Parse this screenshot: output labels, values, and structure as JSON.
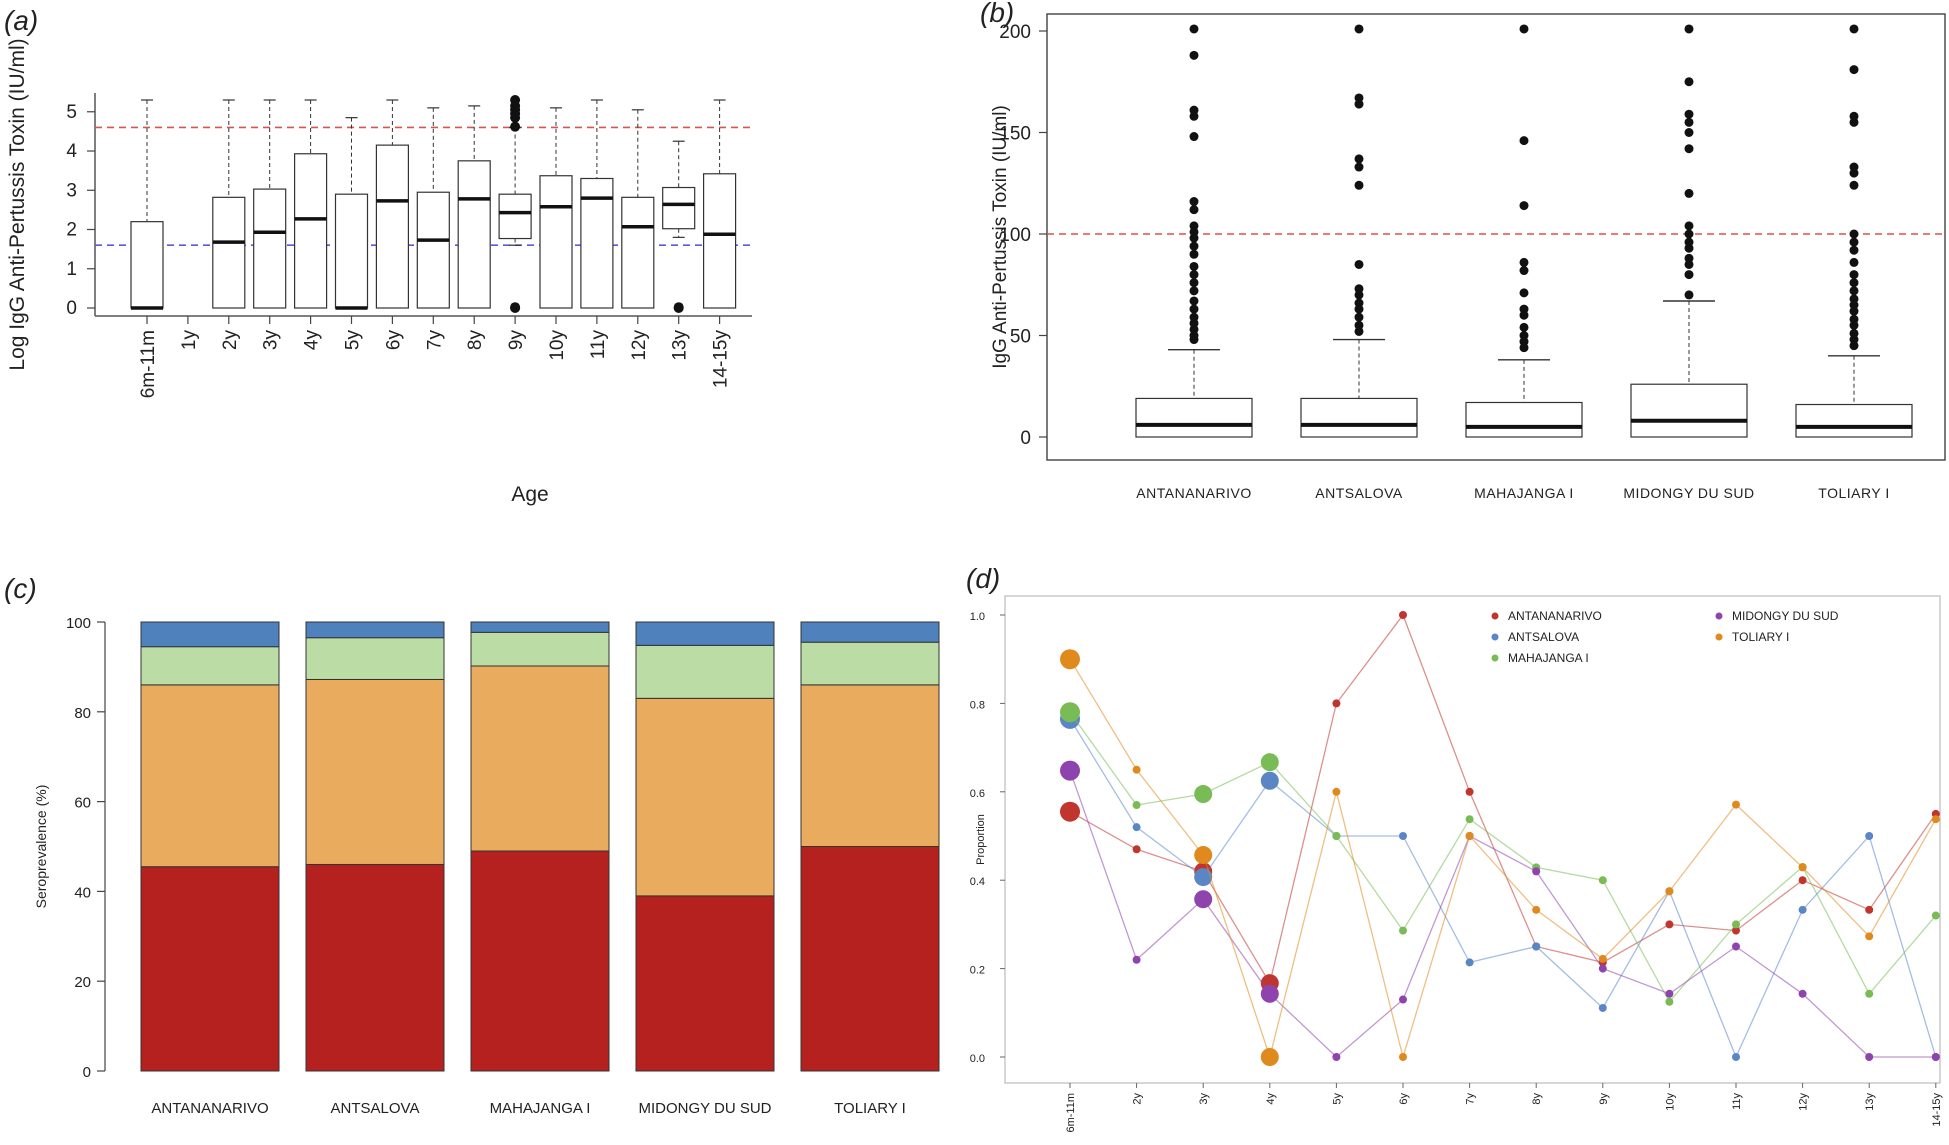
{
  "colors": {
    "ref_high": "#d9534f",
    "ref_low": "#5b5bd6",
    "stack": [
      "#b5211e",
      "#e9ab5e",
      "#bbdca4",
      "#4f81bd"
    ],
    "series": {
      "ANTANANARIVO": "#c0352d",
      "ANTSALOVA": "#5b86c6",
      "MAHAJANGA I": "#79bb55",
      "MIDONGY DU SUD": "#8e44ad",
      "TOLIARY I": "#e08a1e"
    }
  },
  "chart_data": [
    {
      "panel": "(a)",
      "type": "box",
      "xlabel": "Age",
      "ylabel": "Log IgG Anti-Pertussis Toxin (IU/ml)",
      "ylim": [
        0,
        5.3
      ],
      "yticks": [
        "0",
        "1",
        "2",
        "3",
        "4",
        "5"
      ],
      "reference_lines": [
        4.6,
        1.6
      ],
      "categories": [
        "6m-11m",
        "1y",
        "2y",
        "3y",
        "4y",
        "5y",
        "6y",
        "7y",
        "8y",
        "9y",
        "10y",
        "11y",
        "12y",
        "13y",
        "14-15y"
      ],
      "boxes": [
        {
          "cat": "6m-11m",
          "min": 0,
          "q1": 0,
          "median": 0,
          "q3": 2.2,
          "max": 5.3,
          "outliers": []
        },
        {
          "cat": "2y",
          "min": 0,
          "q1": 0,
          "median": 1.68,
          "q3": 2.82,
          "max": 5.3,
          "outliers": []
        },
        {
          "cat": "3y",
          "min": 0,
          "q1": 0,
          "median": 1.93,
          "q3": 3.03,
          "max": 5.3,
          "outliers": []
        },
        {
          "cat": "4y",
          "min": 0,
          "q1": 0,
          "median": 2.27,
          "q3": 3.93,
          "max": 5.3,
          "outliers": []
        },
        {
          "cat": "5y",
          "min": 0,
          "q1": 0,
          "median": 0,
          "q3": 2.9,
          "max": 4.85,
          "outliers": []
        },
        {
          "cat": "6y",
          "min": 0,
          "q1": 0,
          "median": 2.73,
          "q3": 4.15,
          "max": 5.3,
          "outliers": []
        },
        {
          "cat": "7y",
          "min": 0,
          "q1": 0,
          "median": 1.73,
          "q3": 2.95,
          "max": 5.1,
          "outliers": []
        },
        {
          "cat": "8y",
          "min": 0,
          "q1": 0,
          "median": 2.78,
          "q3": 3.75,
          "max": 5.15,
          "outliers": []
        },
        {
          "cat": "9y",
          "min": 1.6,
          "q1": 1.77,
          "median": 2.43,
          "q3": 2.9,
          "max": 4.6,
          "outliers": [
            0,
            0.02,
            4.62,
            4.85,
            4.95,
            5.05,
            5.15,
            5.3
          ]
        },
        {
          "cat": "10y",
          "min": 0,
          "q1": 0,
          "median": 2.58,
          "q3": 3.37,
          "max": 5.1,
          "outliers": []
        },
        {
          "cat": "11y",
          "min": 0,
          "q1": 0,
          "median": 2.8,
          "q3": 3.3,
          "max": 5.3,
          "outliers": []
        },
        {
          "cat": "12y",
          "min": 0,
          "q1": 0,
          "median": 2.07,
          "q3": 2.82,
          "max": 5.05,
          "outliers": []
        },
        {
          "cat": "13y",
          "min": 1.8,
          "q1": 2.02,
          "median": 2.64,
          "q3": 3.07,
          "max": 4.25,
          "outliers": [
            0,
            0.02
          ]
        },
        {
          "cat": "14-15y",
          "min": 0,
          "q1": 0,
          "median": 1.88,
          "q3": 3.42,
          "max": 5.3,
          "outliers": []
        }
      ]
    },
    {
      "panel": "(b)",
      "type": "box",
      "xlabel": "",
      "ylabel": "IgG Anti-Pertussis Toxin (IU/ml)",
      "ylim": [
        0,
        200
      ],
      "yticks": [
        "0",
        "50",
        "100",
        "150",
        "200"
      ],
      "reference_lines": [
        100
      ],
      "categories": [
        "ANTANANARIVO",
        "ANTSALOVA",
        "MAHAJANGA I",
        "MIDONGY DU SUD",
        "TOLIARY I"
      ],
      "boxes": [
        {
          "cat": "ANTANANARIVO",
          "min": 0,
          "q1": 0,
          "median": 6,
          "q3": 19,
          "max": 43,
          "outliers": [
            48,
            50,
            53,
            56,
            59,
            63,
            67,
            72,
            76,
            80,
            84,
            90,
            94,
            98,
            101,
            104,
            112,
            116,
            148,
            158,
            161,
            188,
            201
          ]
        },
        {
          "cat": "ANTSALOVA",
          "min": 0,
          "q1": 0,
          "median": 6,
          "q3": 19,
          "max": 48,
          "outliers": [
            52,
            55,
            59,
            63,
            66,
            70,
            73,
            85,
            124,
            133,
            137,
            164,
            167,
            201
          ]
        },
        {
          "cat": "MAHAJANGA I",
          "min": 0,
          "q1": 0,
          "median": 5,
          "q3": 17,
          "max": 38,
          "outliers": [
            44,
            47,
            50,
            54,
            60,
            63,
            71,
            82,
            86,
            114,
            146,
            201
          ]
        },
        {
          "cat": "MIDONGY DU SUD",
          "min": 0,
          "q1": 0,
          "median": 8,
          "q3": 26,
          "max": 67,
          "outliers": [
            70,
            80,
            85,
            88,
            93,
            96,
            100,
            104,
            120,
            142,
            150,
            155,
            159,
            175,
            201
          ]
        },
        {
          "cat": "TOLIARY I",
          "min": 0,
          "q1": 0,
          "median": 5,
          "q3": 16,
          "max": 40,
          "outliers": [
            45,
            48,
            51,
            55,
            58,
            62,
            65,
            68,
            72,
            76,
            80,
            86,
            92,
            96,
            100,
            124,
            130,
            133,
            155,
            158,
            181,
            201
          ]
        }
      ]
    },
    {
      "panel": "(c)",
      "type": "bar",
      "stacked": true,
      "ylabel": "Seroprevalence (%)",
      "ylim": [
        0,
        100
      ],
      "yticks": [
        "0",
        "20",
        "40",
        "60",
        "80",
        "100"
      ],
      "categories": [
        "ANTANANARIVO",
        "ANTSALOVA",
        "MAHAJANGA I",
        "MIDONGY DU SUD",
        "TOLIARY I"
      ],
      "series": [
        {
          "values": [
            45.5,
            46,
            49,
            39,
            50
          ]
        },
        {
          "values": [
            40.5,
            41.2,
            41.2,
            44,
            36
          ]
        },
        {
          "values": [
            8.5,
            9.3,
            7.5,
            11.8,
            9.5
          ]
        },
        {
          "values": [
            5.5,
            3.5,
            2.3,
            5.2,
            4.5
          ]
        }
      ]
    },
    {
      "panel": "(d)",
      "type": "line",
      "ylabel": "Proportion",
      "ylim": [
        0,
        1
      ],
      "yticks": [
        "0.0",
        "0.2",
        "0.4",
        "0.6",
        "0.8",
        "1.0"
      ],
      "categories": [
        "6m-11m",
        "2y",
        "3y",
        "4y",
        "5y",
        "6y",
        "7y",
        "8y",
        "9y",
        "10y",
        "11y",
        "12y",
        "13y",
        "14-15y"
      ],
      "legend": [
        "ANTANANARIVO",
        "ANTSALOVA",
        "MAHAJANGA I",
        "MIDONGY DU SUD",
        "TOLIARY I"
      ],
      "series": [
        {
          "name": "ANTANANARIVO",
          "values": [
            0.555,
            0.47,
            0.42,
            0.167,
            0.8,
            1.0,
            0.6,
            0.25,
            0.214,
            0.3,
            0.286,
            0.4,
            0.333,
            0.55
          ]
        },
        {
          "name": "ANTSALOVA",
          "values": [
            0.765,
            0.52,
            0.407,
            0.625,
            0.5,
            0.5,
            0.214,
            0.25,
            0.111,
            0.375,
            0.0,
            0.333,
            0.5,
            0.0
          ]
        },
        {
          "name": "MAHAJANGA I",
          "values": [
            0.78,
            0.57,
            0.595,
            0.667,
            0.5,
            0.286,
            0.538,
            0.429,
            0.4,
            0.125,
            0.3,
            0.43,
            0.143,
            0.32
          ]
        },
        {
          "name": "MIDONGY DU SUD",
          "values": [
            0.648,
            0.22,
            0.357,
            0.143,
            0.0,
            0.13,
            0.5,
            0.42,
            0.2,
            0.143,
            0.25,
            0.143,
            0.0,
            0.0
          ]
        },
        {
          "name": "TOLIARY I",
          "values": [
            0.9,
            0.65,
            0.457,
            0.0,
            0.6,
            0.0,
            0.5,
            0.333,
            0.222,
            0.375,
            0.571,
            0.429,
            0.273,
            0.538
          ]
        }
      ]
    }
  ]
}
